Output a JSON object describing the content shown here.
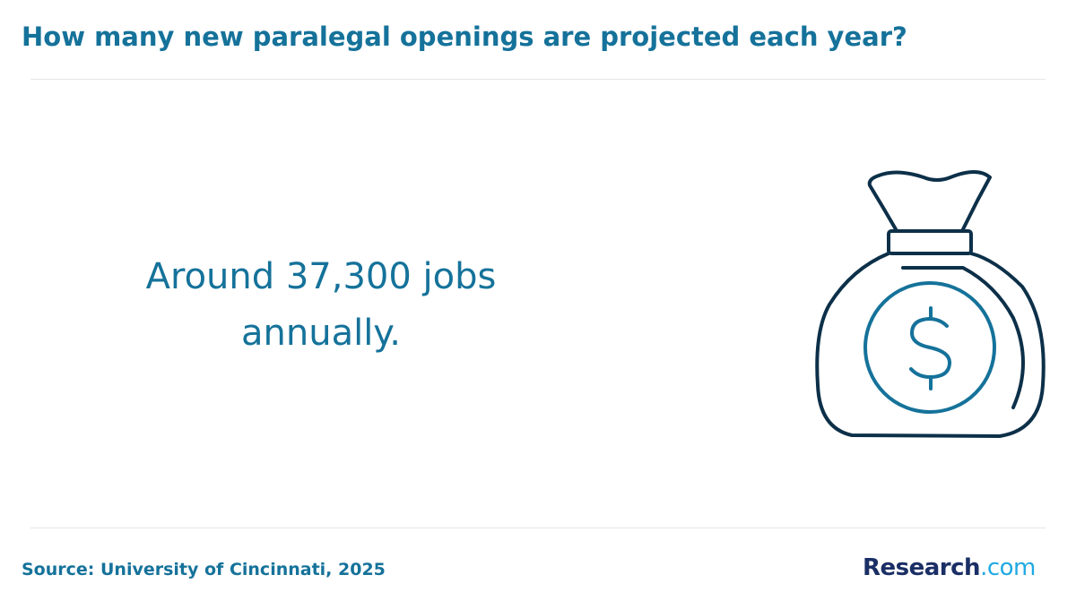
{
  "header": {
    "title": "How many new paralegal openings are projected each year?"
  },
  "body": {
    "text": "Around 37,300 jobs annually."
  },
  "footer": {
    "source": "Source: University of Cincinnati, 2025",
    "logo": {
      "name": "Research",
      "suffix": ".com"
    }
  }
}
